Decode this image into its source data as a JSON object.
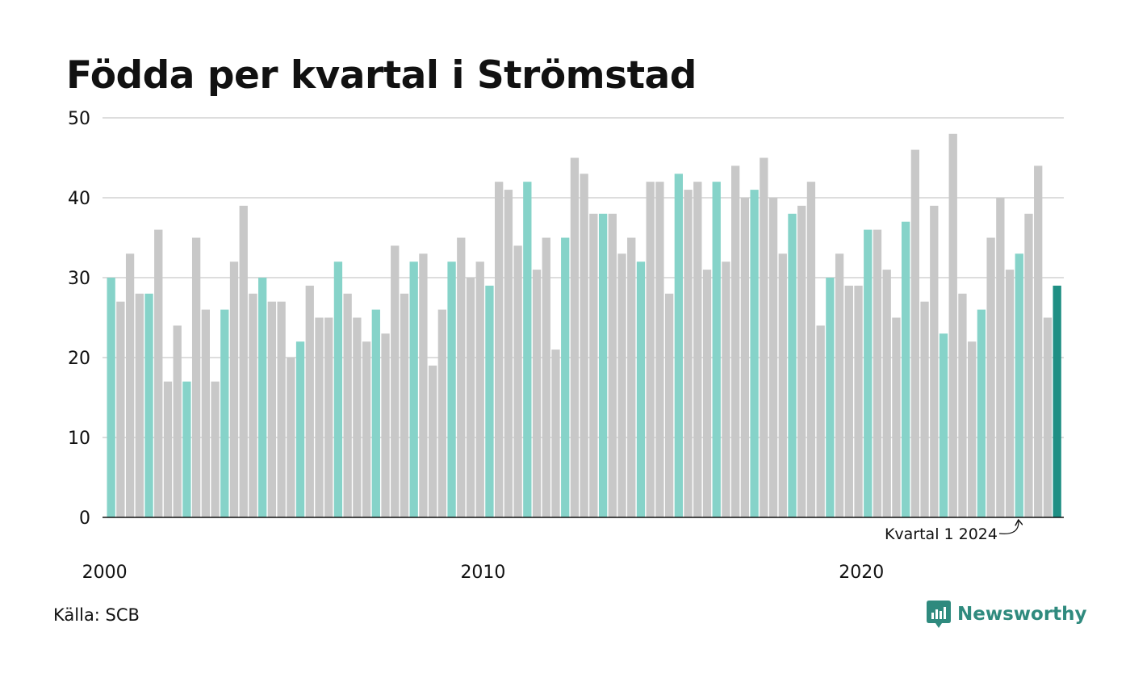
{
  "title": "Födda per kvartal i Strömstad",
  "source": "Källa: SCB",
  "brand": {
    "name": "Newsworthy",
    "icon": "newsworthy-logo-icon"
  },
  "colors": {
    "q1": "#86d3c9",
    "other": "#c8c8c8",
    "latest": "#1f8f84",
    "grid": "#dddddd",
    "axis": "#111111"
  },
  "chart_data": {
    "type": "bar",
    "title": "Födda per kvartal i Strömstad",
    "xlabel": "",
    "ylabel": "",
    "ylim": [
      0,
      50
    ],
    "yticks": [
      0,
      10,
      20,
      30,
      40,
      50
    ],
    "xtick_labels": [
      "2000",
      "2010",
      "2020"
    ],
    "grid": true,
    "start_year": 2000,
    "values": [
      30,
      27,
      33,
      28,
      28,
      36,
      17,
      24,
      17,
      35,
      26,
      17,
      26,
      32,
      39,
      28,
      30,
      27,
      27,
      20,
      22,
      29,
      25,
      25,
      32,
      28,
      25,
      22,
      26,
      23,
      34,
      28,
      32,
      33,
      19,
      26,
      32,
      35,
      30,
      32,
      29,
      42,
      41,
      34,
      42,
      31,
      35,
      21,
      35,
      45,
      43,
      38,
      38,
      38,
      33,
      35,
      32,
      42,
      42,
      28,
      43,
      41,
      42,
      31,
      42,
      32,
      44,
      40,
      41,
      45,
      40,
      33,
      38,
      39,
      42,
      24,
      30,
      33,
      29,
      29,
      36,
      36,
      31,
      25,
      37,
      46,
      27,
      39,
      23,
      48,
      28,
      22,
      26,
      35,
      40,
      31,
      33,
      38,
      44,
      25,
      29
    ],
    "annotation": {
      "text": "Kvartal 1 2024"
    }
  }
}
